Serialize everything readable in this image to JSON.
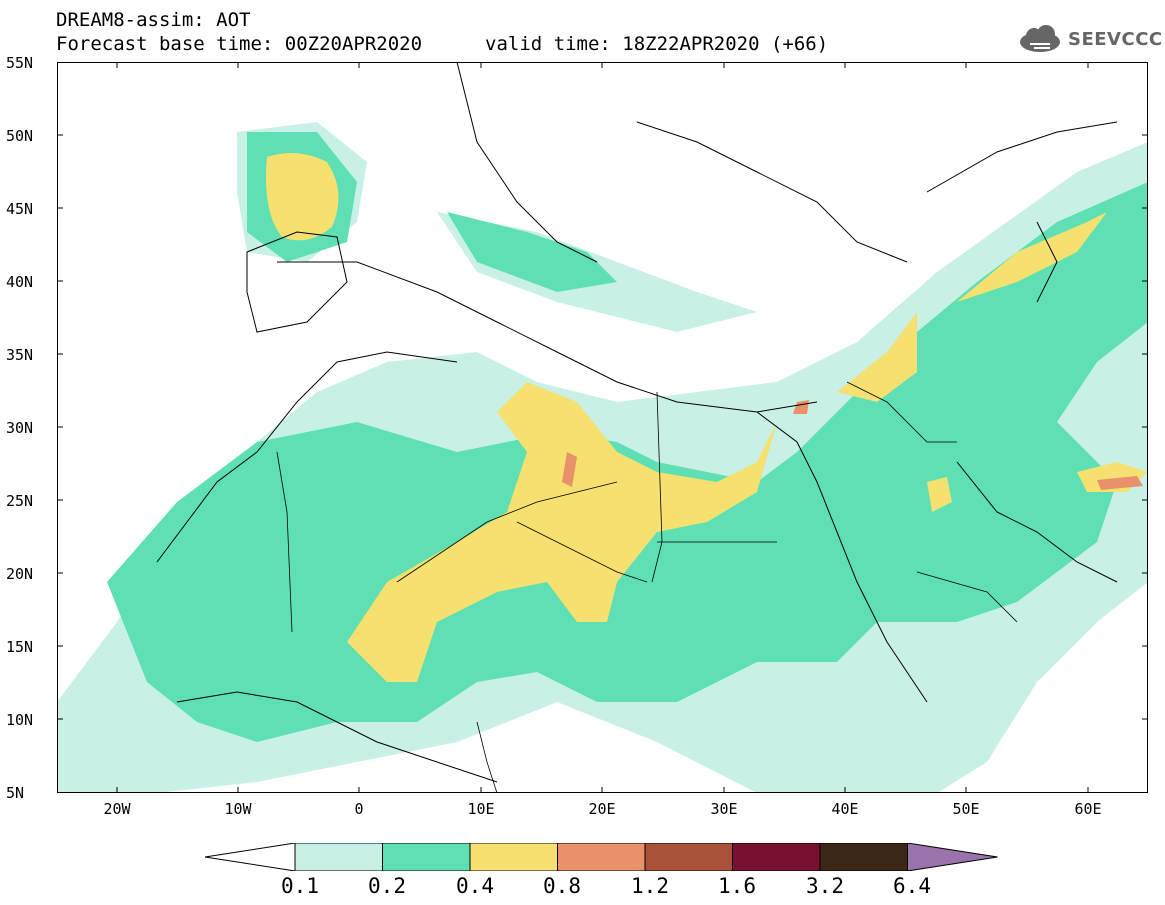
{
  "header": {
    "line1": "DREAM8-assim: AOT",
    "line2": "Forecast base time: 00Z20APR2020",
    "valid": "valid time: 18Z22APR2020 (+66)"
  },
  "logo": {
    "text": "SEEVCCC",
    "icon": "cloud-icon"
  },
  "lat_labels": [
    "55N",
    "50N",
    "45N",
    "40N",
    "35N",
    "30N",
    "25N",
    "20N",
    "15N",
    "10N",
    "5N"
  ],
  "lon_labels": [
    "20W",
    "10W",
    "0",
    "10E",
    "20E",
    "30E",
    "40E",
    "50E",
    "60E"
  ],
  "colorbar": {
    "labels": [
      "0.1",
      "0.2",
      "0.4",
      "0.8",
      "1.2",
      "1.6",
      "3.2",
      "6.4"
    ],
    "colors": [
      "#ffffff",
      "#c8f0e6",
      "#5ee0b4",
      "#f5e070",
      "#e8916a",
      "#a85038",
      "#781030",
      "#3c2818",
      "#9a72ac"
    ]
  },
  "colors": {
    "level1": "#c8f0e6",
    "level2": "#5ee0b4",
    "level3": "#f5e070",
    "level4": "#e8916a"
  }
}
